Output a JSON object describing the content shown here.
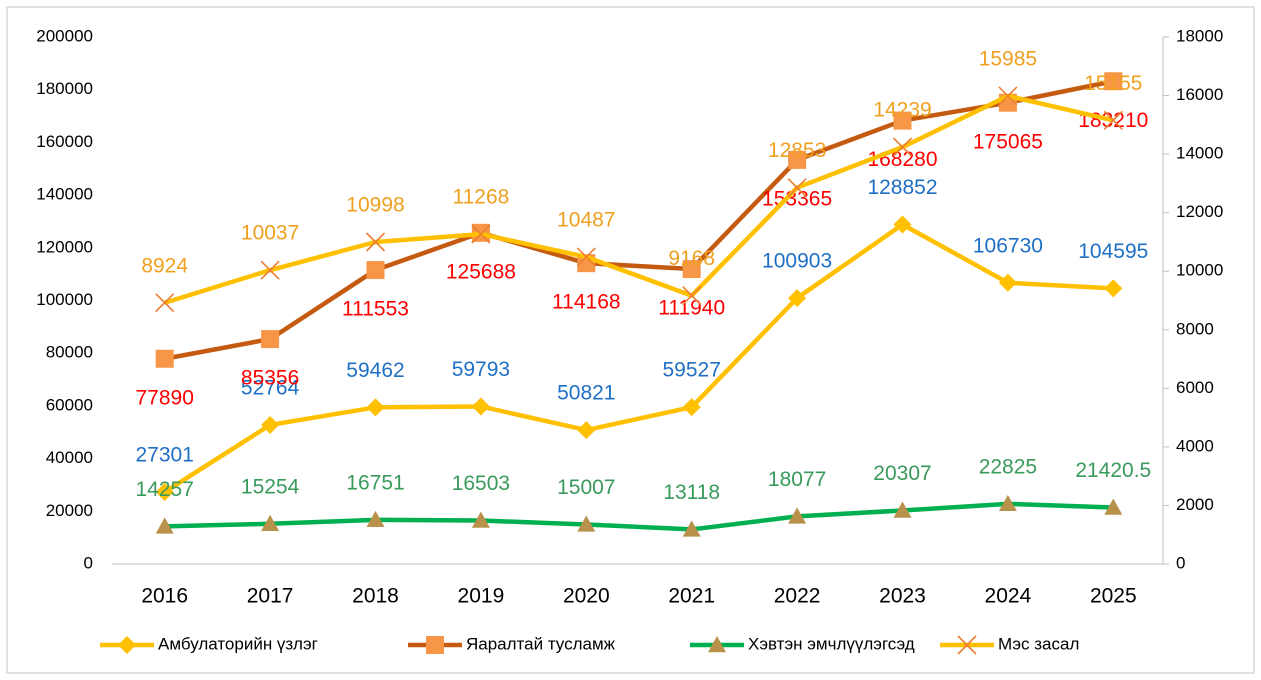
{
  "chart_data": {
    "type": "line",
    "categories": [
      "2016",
      "2017",
      "2018",
      "2019",
      "2020",
      "2021",
      "2022",
      "2023",
      "2024",
      "2025"
    ],
    "ylim": [
      0,
      200000
    ],
    "yticks": [
      0,
      20000,
      40000,
      60000,
      80000,
      100000,
      120000,
      140000,
      160000,
      180000,
      200000
    ],
    "y2lim": [
      0,
      18000
    ],
    "y2ticks": [
      0,
      2000,
      4000,
      6000,
      8000,
      10000,
      12000,
      14000,
      16000,
      18000
    ],
    "grid": false,
    "legend": "bottom",
    "series": [
      {
        "name": "Амбулаторийн үзлэг",
        "color": "#FFC000",
        "marker": "diamond",
        "marker_color": "#FFC000",
        "label_color": "#1F6FC5",
        "values": [
          27301,
          52764,
          59462,
          59793,
          50821,
          59527,
          100903,
          128852,
          106730,
          104595
        ]
      },
      {
        "name": "Яаралтай тусламж",
        "color": "#C55A11",
        "marker": "square",
        "marker_color": "#F79646",
        "label_color": "#FF0000",
        "values": [
          77890,
          85356,
          111553,
          125688,
          114168,
          111940,
          153365,
          168280,
          175065,
          183210
        ]
      },
      {
        "name": "Хэвтэн эмчлүүлэгсэд",
        "color": "#00B050",
        "marker": "triangle",
        "marker_color": "#B8924A",
        "label_color": "#3A9A5C",
        "values": [
          14257,
          15254,
          16751,
          16503,
          15007,
          13118,
          18077,
          20307,
          22825,
          21420.5
        ]
      },
      {
        "name": "Мэс засал",
        "color": "#FFC000",
        "marker": "x",
        "marker_color": "#ED7D31",
        "label_color": "#F0A020",
        "axis": "y2",
        "values": [
          8924,
          10037,
          10998,
          11268,
          10487,
          9168,
          12853,
          14239,
          15985,
          15155
        ]
      }
    ]
  }
}
